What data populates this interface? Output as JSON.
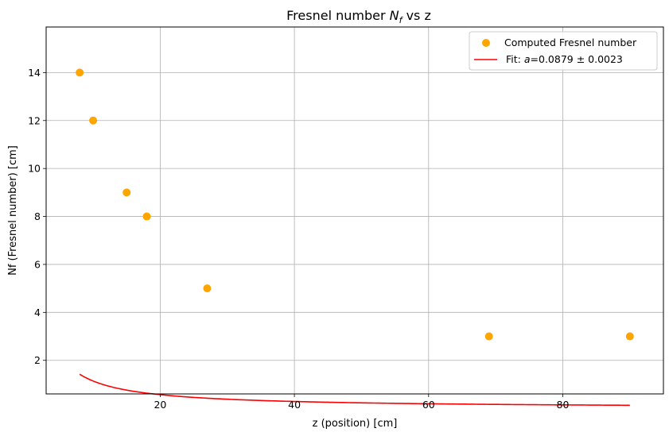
{
  "chart_data": {
    "type": "scatter",
    "title": "Fresnel number N_f vs z",
    "title_main": "Fresnel number ",
    "title_sym": "N",
    "title_sub": "f",
    "title_tail": " vs z",
    "xlabel": "z (position) [cm]",
    "ylabel": "Nf (Fresnel number) [cm]",
    "xlim": [
      3,
      95
    ],
    "ylim": [
      0.6,
      15.9
    ],
    "xticks": [
      20,
      40,
      60,
      80
    ],
    "yticks": [
      2,
      4,
      6,
      8,
      10,
      12,
      14
    ],
    "grid": true,
    "legend_position": "upper right",
    "series": [
      {
        "name": "Computed Fresnel number",
        "kind": "scatter",
        "color": "#FFA500",
        "x": [
          8,
          10,
          15,
          18,
          27,
          69,
          90
        ],
        "y": [
          14,
          12,
          9,
          8,
          5,
          3,
          3
        ]
      },
      {
        "name": "Fit: a=0.0879 ± 0.0023",
        "label_prefix": "Fit: ",
        "label_sym": "a",
        "label_rest": "=0.0879 ± 0.0023",
        "kind": "line",
        "color": "#FF0000",
        "model": "N_f = 1/(a·z)",
        "a": 0.0879,
        "x_range": [
          8,
          90
        ]
      }
    ]
  }
}
